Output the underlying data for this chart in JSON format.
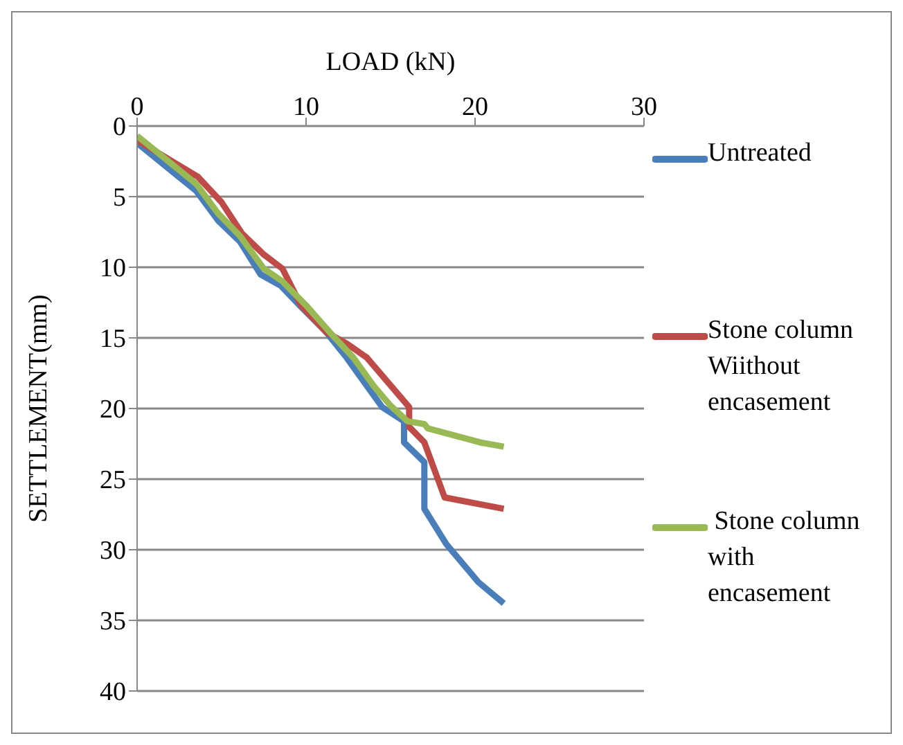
{
  "chart_data": {
    "type": "line",
    "xlabel": "LOAD (kN)",
    "ylabel": "SETTLEMENT(mm)",
    "xlim": [
      0,
      30
    ],
    "xticks": [
      0,
      10,
      20,
      30
    ],
    "ylim": [
      40,
      0
    ],
    "yticks": [
      0,
      5,
      10,
      15,
      20,
      25,
      30,
      35,
      40
    ],
    "grid": "y",
    "legend": "right",
    "marker": "none",
    "line_style": "solid",
    "series": [
      {
        "name": "Untreated",
        "color": "#4a7ebb",
        "x": [
          0,
          3.5,
          4.8,
          6.1,
          7.3,
          8.5,
          9.7,
          11.2,
          12.4,
          14.5,
          15.8,
          15.8,
          17,
          17,
          18.3,
          20.2,
          21.7
        ],
        "values": [
          1.2,
          4.6,
          6.7,
          8.2,
          10.5,
          11.3,
          12.8,
          14.6,
          16.4,
          19.9,
          20.9,
          22.4,
          23.8,
          27.1,
          29.6,
          32.3,
          33.8
        ]
      },
      {
        "name": "Stone column Wiithout encasement",
        "color": "#be4b48",
        "x": [
          0,
          3.6,
          5,
          6.2,
          7.5,
          8.6,
          9.7,
          11.2,
          12.4,
          13.6,
          16.1,
          16.1,
          17,
          18.2,
          21.7
        ],
        "values": [
          1.0,
          3.6,
          5.4,
          7.6,
          9.1,
          10.1,
          12.7,
          14.6,
          15.4,
          16.4,
          19.9,
          21.3,
          22.4,
          26.3,
          27.1
        ]
      },
      {
        "name": " Stone column with encasement",
        "color": "#98b954",
        "x": [
          0,
          3.5,
          4.8,
          6.1,
          7.5,
          8.6,
          10,
          11.4,
          12.8,
          14,
          15,
          16,
          17,
          17.2,
          20.3,
          21.7
        ],
        "values": [
          0.7,
          4.1,
          6.2,
          7.8,
          10.1,
          11.0,
          12.7,
          14.6,
          16.4,
          18.4,
          19.8,
          20.9,
          21.1,
          21.4,
          22.4,
          22.7
        ]
      }
    ]
  }
}
